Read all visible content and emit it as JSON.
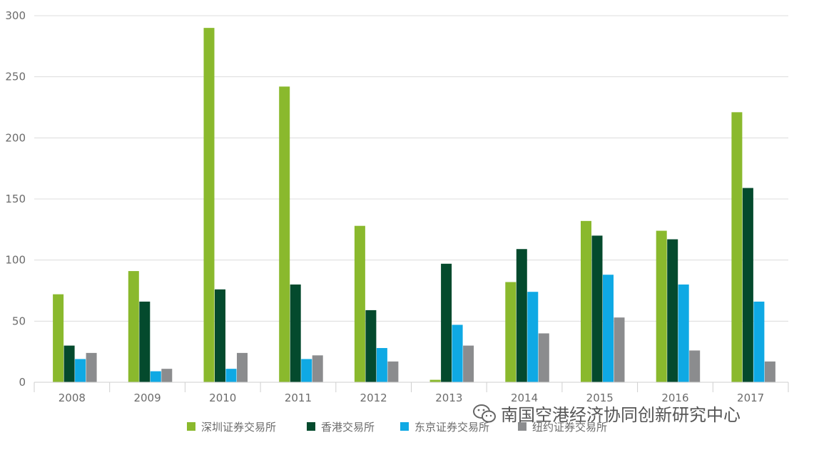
{
  "chart_data": {
    "type": "bar",
    "categories": [
      "2008",
      "2009",
      "2010",
      "2011",
      "2012",
      "2013",
      "2014",
      "2015",
      "2016",
      "2017"
    ],
    "series": [
      {
        "name": "深圳证券交易所",
        "color": "#8ab92d",
        "values": [
          72,
          91,
          290,
          242,
          128,
          2,
          82,
          132,
          124,
          221
        ]
      },
      {
        "name": "香港交易所",
        "color": "#044a2d",
        "values": [
          30,
          66,
          76,
          80,
          59,
          97,
          109,
          120,
          117,
          159
        ]
      },
      {
        "name": "东京证券交易所",
        "color": "#0fa9e4",
        "values": [
          19,
          9,
          11,
          19,
          28,
          47,
          74,
          88,
          80,
          66
        ]
      },
      {
        "name": "纽约证券交易所",
        "color": "#8b8c8e",
        "values": [
          24,
          11,
          24,
          22,
          17,
          30,
          40,
          53,
          26,
          17
        ]
      }
    ],
    "yticks": [
      "0",
      "50",
      "100",
      "150",
      "200",
      "250",
      "300"
    ],
    "ylim": [
      0,
      300
    ],
    "grid": true,
    "legend_position": "bottom"
  },
  "watermark": {
    "text": "南国空港经济协同创新研究中心",
    "icon": "wechat-icon"
  }
}
